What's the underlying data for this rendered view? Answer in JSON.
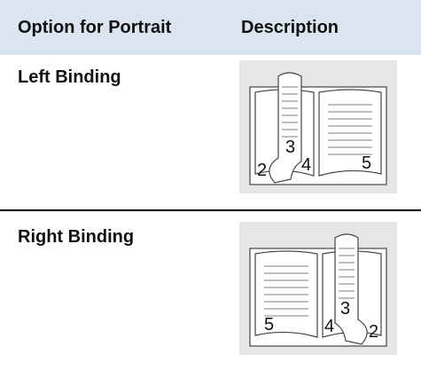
{
  "table": {
    "header": [
      "Option for Portrait",
      "Description"
    ],
    "rows": [
      {
        "option": "Left Binding",
        "page_numbers": [
          "2",
          "3",
          "4",
          "5"
        ]
      },
      {
        "option": "Right Binding",
        "page_numbers": [
          "5",
          "4",
          "3",
          "2"
        ]
      }
    ]
  }
}
